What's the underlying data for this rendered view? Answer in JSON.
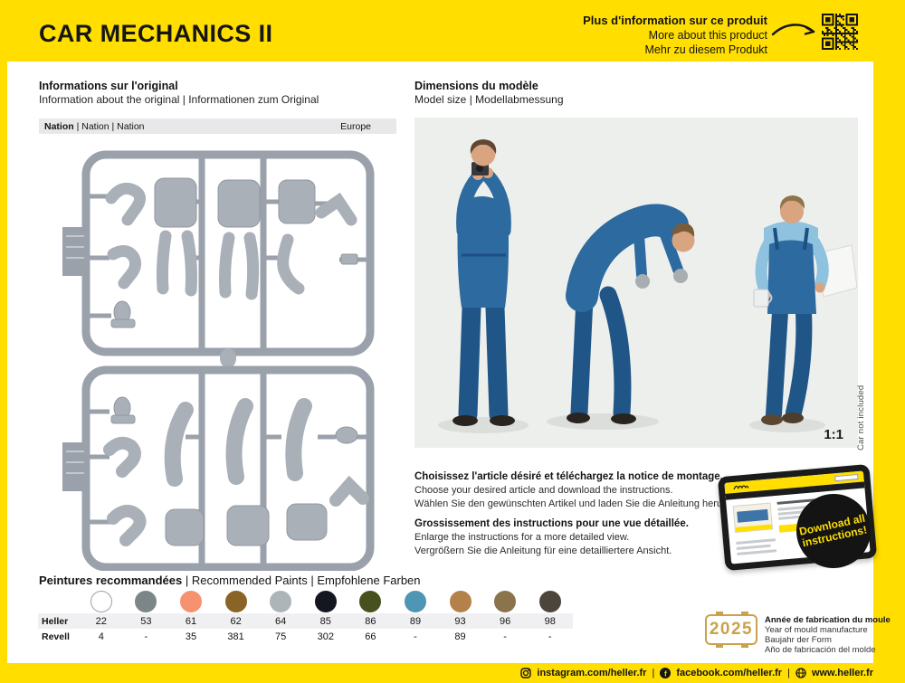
{
  "header": {
    "title": "CAR MECHANICS II",
    "more_info_fr": "Plus d'information sur ce produit",
    "more_info_en": "More about this product",
    "more_info_de": "Mehr zu diesem Produkt"
  },
  "original_info": {
    "title_fr": "Informations sur l'original",
    "title_sub": "Information about the original | Informationen zum Original",
    "nation_label": "Nation",
    "nation_label_rest": " | Nation | Nation",
    "nation_value": "Europe"
  },
  "model_size": {
    "title_fr": "Dimensions du modèle",
    "title_sub": "Model size | Modellabmessung",
    "scale": "1:1",
    "car_note": "Car not included"
  },
  "instructions": {
    "choose_fr": "Choisissez l'article désiré et téléchargez la notice de montage.",
    "choose_en": "Choose your desired article and download the instructions.",
    "choose_de": "Wählen Sie den gewünschten Artikel und laden Sie die Anleitung herunter.",
    "enlarge_fr": "Grossissement des instructions pour une vue détaillée.",
    "enlarge_en": "Enlarge the instructions for a more detailed view.",
    "enlarge_de": "Vergrößern Sie die Anleitung für eine detailliertere Ansicht.",
    "badge_line1": "Download all",
    "badge_line2": "instructions!"
  },
  "paints": {
    "title_fr": "Peintures recommandées",
    "title_rest": " | Recommended Paints | Empfohlene Farben",
    "brand_row1": "Heller",
    "brand_row2": "Revell",
    "swatches": [
      {
        "hex": "#ffffff",
        "border": "#9aa0a4",
        "heller": "22",
        "revell": "4"
      },
      {
        "hex": "#7c8689",
        "border": "#7c8689",
        "heller": "53",
        "revell": "-"
      },
      {
        "hex": "#f6926f",
        "border": "#f6926f",
        "heller": "61",
        "revell": "35"
      },
      {
        "hex": "#8a6426",
        "border": "#8a6426",
        "heller": "62",
        "revell": "381"
      },
      {
        "hex": "#aeb5b9",
        "border": "#aeb5b9",
        "heller": "64",
        "revell": "75"
      },
      {
        "hex": "#14171f",
        "border": "#14171f",
        "heller": "85",
        "revell": "302"
      },
      {
        "hex": "#46511f",
        "border": "#46511f",
        "heller": "86",
        "revell": "66"
      },
      {
        "hex": "#4e96b4",
        "border": "#4e96b4",
        "heller": "89",
        "revell": "-"
      },
      {
        "hex": "#b5814a",
        "border": "#b5814a",
        "heller": "93",
        "revell": "89"
      },
      {
        "hex": "#8b744c",
        "border": "#8b744c",
        "heller": "96",
        "revell": "-"
      },
      {
        "hex": "#4b453c",
        "border": "#4b453c",
        "heller": "98",
        "revell": "-"
      }
    ]
  },
  "mould_year": {
    "year": "2025",
    "line1": "Année de fabrication du moule",
    "line2": "Year of mould manufacture",
    "line3": "Baujahr der Form",
    "line4": "Año de fabricación del molde"
  },
  "footer": {
    "instagram": "instagram.com/heller.fr",
    "facebook": "facebook.com/heller.fr",
    "website": "www.heller.fr",
    "divider": "|"
  },
  "colors": {
    "brand_yellow": "#FFDE00",
    "ink": "#141414",
    "photo_bg": "#edefec",
    "sprue_gray": "#9aa1ab",
    "gold": "#c9a24b"
  }
}
